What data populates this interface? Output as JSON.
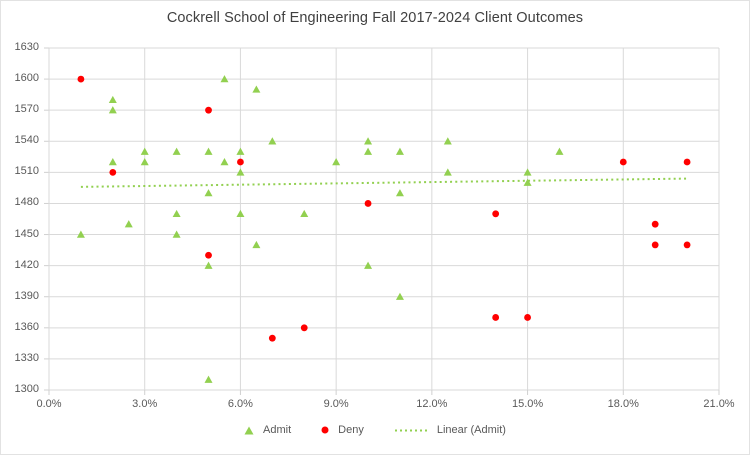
{
  "title": "Cockrell School of Engineering Fall 2017-2024 Client Outcomes",
  "colors": {
    "admit_green": "#92D050",
    "deny_red": "#FF0000",
    "gridline": "#D9D9D9",
    "axis_line": "#D0D0D0",
    "axis_text": "#595959",
    "title_text": "#404040",
    "background": "#FFFFFF",
    "chart_border": "#E2E2E2"
  },
  "chart_data": {
    "type": "scatter",
    "title": "Cockrell School of Engineering Fall 2017-2024 Client Outcomes",
    "grid": true,
    "legend_position": "bottom",
    "x_axis": {
      "min": 0,
      "max": 21,
      "tick_step": 3,
      "unit": "percent",
      "ticks": [
        0,
        3,
        6,
        9,
        12,
        15,
        18,
        21
      ],
      "tick_labels": [
        "0.0%",
        "3.0%",
        "6.0%",
        "9.0%",
        "12.0%",
        "15.0%",
        "18.0%",
        "21.0%"
      ]
    },
    "y_axis": {
      "min": 1300,
      "max": 1630,
      "tick_step": 30,
      "ticks": [
        1300,
        1330,
        1360,
        1390,
        1420,
        1450,
        1480,
        1510,
        1540,
        1570,
        1600,
        1630
      ],
      "tick_labels": [
        "1300",
        "1330",
        "1360",
        "1390",
        "1420",
        "1450",
        "1480",
        "1510",
        "1540",
        "1570",
        "1600",
        "1630"
      ]
    },
    "series": [
      {
        "name": "Admit",
        "marker": "triangle",
        "color": "#92D050",
        "points": [
          [
            1,
            1450
          ],
          [
            2,
            1580
          ],
          [
            2,
            1570
          ],
          [
            2,
            1520
          ],
          [
            2.5,
            1460
          ],
          [
            3,
            1530
          ],
          [
            3,
            1520
          ],
          [
            4,
            1530
          ],
          [
            4,
            1470
          ],
          [
            4,
            1450
          ],
          [
            5,
            1530
          ],
          [
            5,
            1490
          ],
          [
            5,
            1420
          ],
          [
            5,
            1310
          ],
          [
            5.5,
            1600
          ],
          [
            5.5,
            1520
          ],
          [
            6,
            1530
          ],
          [
            6,
            1510
          ],
          [
            6,
            1470
          ],
          [
            6.5,
            1590
          ],
          [
            6.5,
            1440
          ],
          [
            7,
            1540
          ],
          [
            8,
            1470
          ],
          [
            9,
            1520
          ],
          [
            10,
            1540
          ],
          [
            10,
            1530
          ],
          [
            10,
            1420
          ],
          [
            11,
            1530
          ],
          [
            11,
            1490
          ],
          [
            11,
            1390
          ],
          [
            12.5,
            1540
          ],
          [
            12.5,
            1510
          ],
          [
            15,
            1510
          ],
          [
            15,
            1500
          ],
          [
            16,
            1530
          ]
        ]
      },
      {
        "name": "Deny",
        "marker": "circle",
        "color": "#FF0000",
        "points": [
          [
            1,
            1600
          ],
          [
            2,
            1510
          ],
          [
            5,
            1570
          ],
          [
            5,
            1430
          ],
          [
            6,
            1520
          ],
          [
            7,
            1350
          ],
          [
            8,
            1360
          ],
          [
            10,
            1480
          ],
          [
            14,
            1470
          ],
          [
            14,
            1370
          ],
          [
            15,
            1370
          ],
          [
            18,
            1520
          ],
          [
            19,
            1460
          ],
          [
            19,
            1440
          ],
          [
            20,
            1520
          ],
          [
            20,
            1440
          ]
        ]
      }
    ],
    "trendline": {
      "label": "Linear (Admit)",
      "series": "Admit",
      "style": "dotted",
      "color": "#92D050",
      "x_start": 1,
      "y_start": 1496,
      "x_end": 20,
      "y_end": 1504
    }
  }
}
